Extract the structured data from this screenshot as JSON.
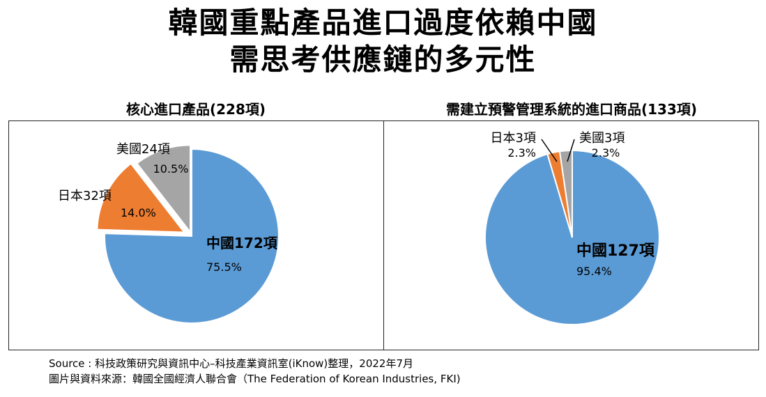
{
  "title": {
    "line1": "韓國重點產品進口過度依賴中國",
    "line2": "需思考供應鏈的多元性"
  },
  "chart_data": [
    {
      "type": "pie",
      "title": "核心進口產品(228項)",
      "slices": [
        {
          "label": "中國172項",
          "value": 75.5,
          "pct_label": "75.5%",
          "color": "#5b9bd5"
        },
        {
          "label": "日本32項",
          "value": 14.0,
          "pct_label": "14.0%",
          "color": "#ed7d31"
        },
        {
          "label": "美國24項",
          "value": 10.5,
          "pct_label": "10.5%",
          "color": "#a5a5a5"
        }
      ]
    },
    {
      "type": "pie",
      "title": "需建立預警管理系統的進口商品(133項)",
      "slices": [
        {
          "label": "中國127項",
          "value": 95.4,
          "pct_label": "95.4%",
          "color": "#5b9bd5"
        },
        {
          "label": "日本3項",
          "value": 2.3,
          "pct_label": "2.3%",
          "color": "#ed7d31"
        },
        {
          "label": "美國3項",
          "value": 2.3,
          "pct_label": "2.3%",
          "color": "#a5a5a5"
        }
      ]
    }
  ],
  "source": {
    "line1": "Source : 科技政策研究與資訊中心–科技產業資訊室(iKnow)整理，2022年7月",
    "line2": "圖片與資料來源：韓國全國經濟人聯合會（The Federation of Korean Industries, FKI)"
  }
}
